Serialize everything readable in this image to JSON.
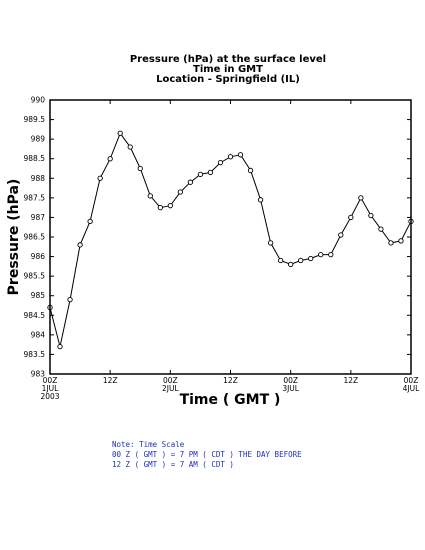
{
  "colors": {
    "line": "#000000",
    "note": "#1f2fbf"
  },
  "chart_data": {
    "type": "line",
    "title": [
      "Pressure (hPa) at the surface level",
      "Time in GMT",
      "Location - Springfield (IL)"
    ],
    "xlabel": "Time ( GMT )",
    "ylabel": "Pressure (hPa)",
    "ylim": [
      983,
      990
    ],
    "yticks": [
      983,
      983.5,
      984,
      984.5,
      985,
      985.5,
      986,
      986.5,
      987,
      987.5,
      988,
      988.5,
      989,
      989.5,
      990
    ],
    "ytick_labels": [
      "983",
      "983.5",
      "984",
      "984.5",
      "985",
      "985.5",
      "986",
      "986.5",
      "987",
      "987.5",
      "988",
      "988.5",
      "989",
      "989.5",
      "990"
    ],
    "xlim": [
      0,
      72
    ],
    "x_unit": "hours since 00Z 1JUL 2003",
    "xticks": [
      {
        "hour": 0,
        "label": "00Z",
        "sub": "1JUL",
        "sub2": "2003"
      },
      {
        "hour": 12,
        "label": "12Z",
        "sub": "",
        "sub2": ""
      },
      {
        "hour": 24,
        "label": "00Z",
        "sub": "2JUL",
        "sub2": ""
      },
      {
        "hour": 36,
        "label": "12Z",
        "sub": "",
        "sub2": ""
      },
      {
        "hour": 48,
        "label": "00Z",
        "sub": "3JUL",
        "sub2": ""
      },
      {
        "hour": 60,
        "label": "12Z",
        "sub": "",
        "sub2": ""
      },
      {
        "hour": 72,
        "label": "00Z",
        "sub": "4JUL",
        "sub2": ""
      }
    ],
    "grid": false,
    "series": [
      {
        "name": "",
        "x": [
          0,
          2,
          4,
          6,
          8,
          10,
          12,
          14,
          16,
          18,
          20,
          22,
          24,
          26,
          28,
          30,
          32,
          34,
          36,
          38,
          40,
          42,
          44,
          46,
          48,
          50,
          52,
          54,
          56,
          58,
          60,
          62,
          64,
          66,
          68,
          70,
          72
        ],
        "y": [
          984.7,
          983.7,
          984.9,
          986.3,
          986.9,
          988.0,
          988.5,
          989.15,
          988.8,
          988.25,
          987.55,
          987.25,
          987.3,
          987.65,
          987.9,
          988.1,
          988.15,
          988.4,
          988.55,
          988.6,
          988.2,
          987.45,
          986.35,
          985.9,
          985.8,
          985.9,
          985.95,
          986.05,
          986.05,
          986.55,
          987.0,
          987.5,
          987.05,
          986.7,
          986.35,
          986.4,
          986.9
        ]
      }
    ]
  },
  "note": {
    "line1": "Note: Time Scale",
    "line2": "00 Z ( GMT ) = 7 PM ( CDT ) THE DAY BEFORE",
    "line3": "12 Z ( GMT ) = 7 AM ( CDT )"
  }
}
